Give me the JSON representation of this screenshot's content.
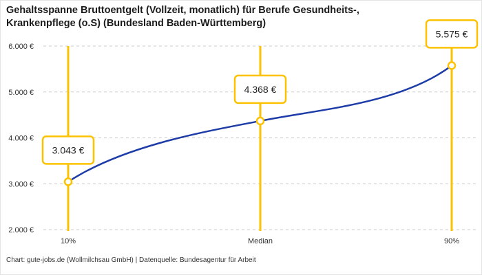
{
  "title": "Gehaltsspanne Bruttoentgelt (Vollzeit, monatlich) für Berufe Gesundheits-,\nKrankenpflege (o.S) (Bundesland Baden-Württemberg)",
  "footer": "Chart: gute-jobs.de (Wollmilchsau GmbH) | Datenquelle: Bundesagentur für Arbeit",
  "chart_data": {
    "type": "line",
    "title": "Gehaltsspanne Bruttoentgelt (Vollzeit, monatlich) für Berufe Gesundheits-, Krankenpflege (o.S) (Bundesland Baden-Württemberg)",
    "categories": [
      "10%",
      "Median",
      "90%"
    ],
    "values": [
      3043,
      4368,
      5575
    ],
    "value_labels": [
      "3.043 €",
      "4.368 €",
      "5.575 €"
    ],
    "ylim": [
      2000,
      6000
    ],
    "yticks": [
      2000,
      3000,
      4000,
      5000,
      6000
    ],
    "ytick_labels": [
      "2.000 €",
      "3.000 €",
      "4.000 €",
      "5.000 €",
      "6.000 €"
    ],
    "xlabel": "",
    "ylabel": "",
    "grid": "horizontal-dashed",
    "legend": "none",
    "colors": {
      "line": "#1e3ca8",
      "highlight": "#fcc200",
      "grid": "#c9c9c9",
      "tick_text": "#333333",
      "label_box_bg": "#ffffff",
      "label_text": "#222222"
    }
  }
}
